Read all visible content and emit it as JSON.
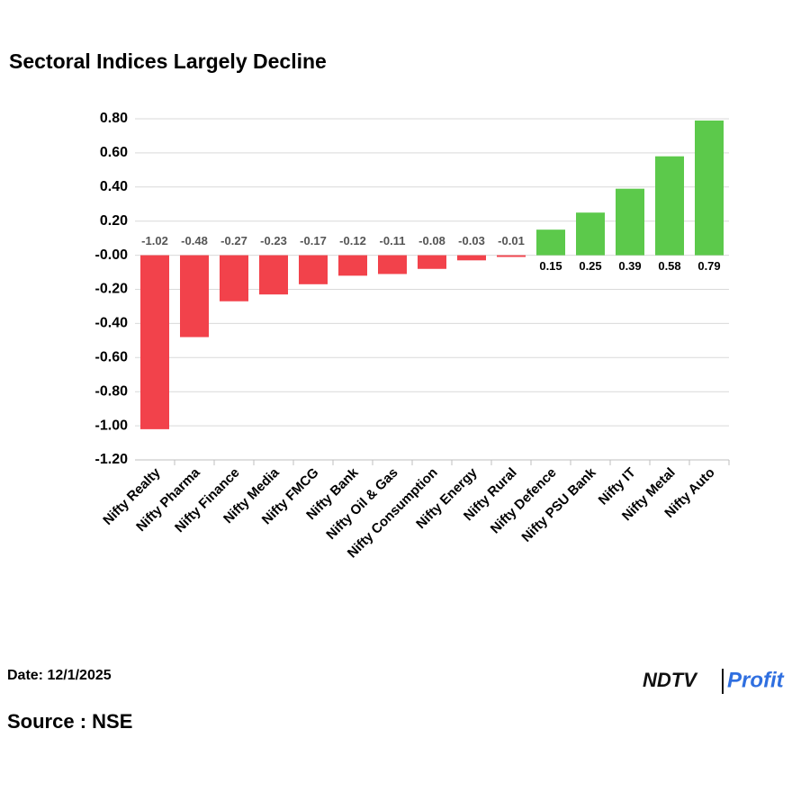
{
  "chart_data": {
    "type": "bar",
    "title": "Sectoral Indices Largely Decline",
    "categories": [
      "Nifty Realty",
      "Nifty Pharma",
      "Nifty Finance",
      "Nifty Media",
      "Nifty FMCG",
      "Nifty Bank",
      "Nifty Oil & Gas",
      "Nifty Consumption",
      "Nifty Energy",
      "Nifty Rural",
      "Nifty Defence",
      "Nifty PSU Bank",
      "Nifty IT",
      "Nifty Metal",
      "Nifty Auto"
    ],
    "values": [
      -1.02,
      -0.48,
      -0.27,
      -0.23,
      -0.17,
      -0.12,
      -0.11,
      -0.08,
      -0.03,
      -0.01,
      0.15,
      0.25,
      0.39,
      0.58,
      0.79
    ],
    "negative_color": "#f2424b",
    "positive_color": "#5cc94b",
    "ylim": [
      -1.2,
      0.8
    ],
    "yticks": [
      {
        "value": 0.8,
        "label": "0.80"
      },
      {
        "value": 0.6,
        "label": "0.60"
      },
      {
        "value": 0.4,
        "label": "0.40"
      },
      {
        "value": 0.2,
        "label": "0.20"
      },
      {
        "value": 0,
        "label": "-0.00"
      },
      {
        "value": -0.2,
        "label": "-0.20"
      },
      {
        "value": -0.4,
        "label": "-0.40"
      },
      {
        "value": -0.6,
        "label": "-0.60"
      },
      {
        "value": -0.8,
        "label": "-0.80"
      },
      {
        "value": -1.0,
        "label": "-1.00"
      },
      {
        "value": -1.2,
        "label": "-1.20"
      }
    ],
    "grid": true
  },
  "footer": {
    "date": "Date: 12/1/2025",
    "source": "Source : NSE",
    "logo_brand": "NDTV",
    "logo_product": "Profit"
  }
}
